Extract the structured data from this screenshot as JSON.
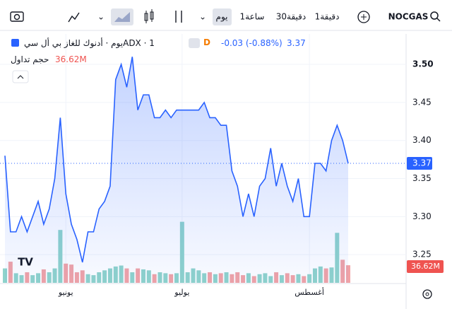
{
  "toolbar": {
    "symbol": "NOCGAS",
    "intervals": [
      "1دقيقة",
      "30دقيقة",
      "1ساعة",
      "يوم"
    ]
  },
  "legend": {
    "title": "ADX · 1يوم · أدنوك للغاز بي أل سي",
    "badge": "D",
    "change": "-0.03 (-0.88%)"
  },
  "chart_data": {
    "type": "area",
    "color": "#2962ff",
    "grid": true,
    "categories": [
      null,
      null,
      null,
      null,
      null,
      null,
      null,
      null,
      null,
      null,
      null,
      "يونيو",
      null,
      null,
      null,
      null,
      null,
      null,
      null,
      null,
      null,
      null,
      null,
      null,
      null,
      null,
      null,
      null,
      null,
      null,
      null,
      null,
      "يوليو",
      null,
      null,
      null,
      null,
      null,
      null,
      null,
      null,
      null,
      null,
      null,
      null,
      null,
      null,
      null,
      null,
      null,
      null,
      null,
      null,
      null,
      null,
      "أغسطس",
      null,
      null,
      null,
      null,
      null,
      null,
      null
    ],
    "values": [
      3.38,
      3.28,
      3.28,
      3.3,
      3.28,
      3.3,
      3.32,
      3.29,
      3.31,
      3.35,
      3.43,
      3.33,
      3.29,
      3.27,
      3.24,
      3.28,
      3.28,
      3.31,
      3.32,
      3.34,
      3.48,
      3.5,
      3.47,
      3.51,
      3.44,
      3.46,
      3.46,
      3.43,
      3.43,
      3.44,
      3.43,
      3.44,
      3.44,
      3.44,
      3.44,
      3.44,
      3.45,
      3.43,
      3.43,
      3.42,
      3.42,
      3.36,
      3.34,
      3.3,
      3.33,
      3.3,
      3.34,
      3.35,
      3.39,
      3.34,
      3.37,
      3.34,
      3.32,
      3.35,
      3.3,
      3.3,
      3.37,
      3.37,
      3.36,
      3.4,
      3.42,
      3.4,
      3.37
    ],
    "ylim": [
      3.213,
      3.54
    ],
    "yticks": [
      3.25,
      {
        "value": 3.3,
        "label": "3.30"
      },
      3.35,
      {
        "value": 3.4,
        "label": "3.40"
      },
      3.45,
      {
        "value": 3.5,
        "label": "3.50"
      }
    ],
    "volume": {
      "name": "حجم تداول",
      "up_color": "#8fd3cb",
      "down_color": "#f1a3a6",
      "last_label": "36.62M",
      "values": [
        30,
        44,
        20,
        16,
        22,
        16,
        20,
        28,
        22,
        30,
        110,
        40,
        38,
        22,
        26,
        18,
        16,
        22,
        26,
        30,
        34,
        36,
        30,
        22,
        30,
        28,
        26,
        18,
        22,
        20,
        18,
        20,
        127,
        22,
        30,
        26,
        20,
        22,
        18,
        20,
        22,
        18,
        22,
        16,
        20,
        14,
        18,
        20,
        14,
        22,
        16,
        20,
        16,
        18,
        14,
        18,
        30,
        34,
        30,
        32,
        104,
        48,
        36.62
      ]
    }
  }
}
